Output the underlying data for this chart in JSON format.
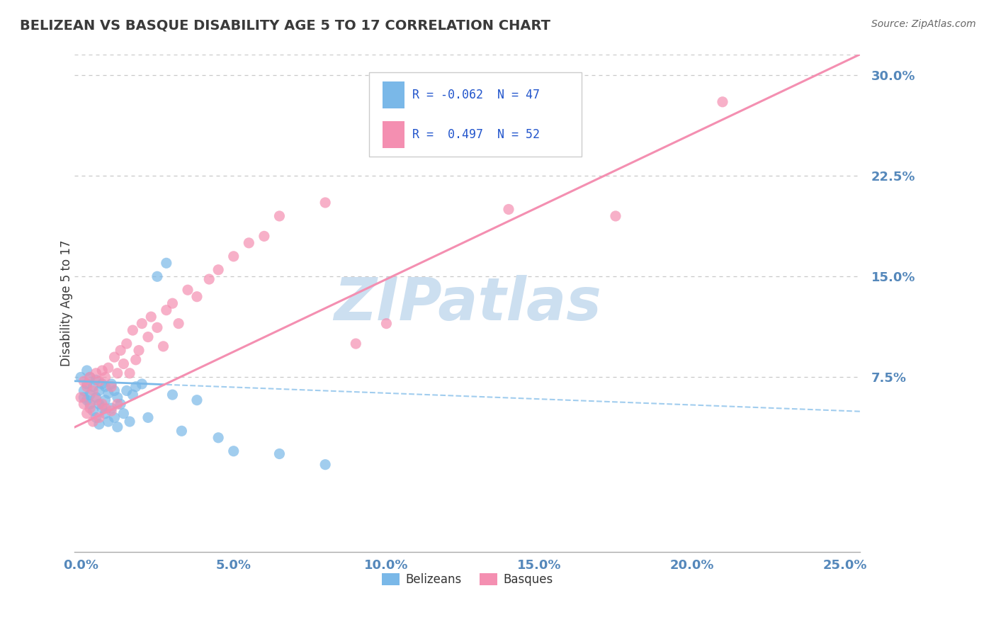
{
  "title": "BELIZEAN VS BASQUE DISABILITY AGE 5 TO 17 CORRELATION CHART",
  "source": "Source: ZipAtlas.com",
  "ylabel_label": "Disability Age 5 to 17",
  "xlim": [
    -0.002,
    0.255
  ],
  "ylim": [
    -0.055,
    0.315
  ],
  "yticks": [
    0.075,
    0.15,
    0.225,
    0.3
  ],
  "ytick_labels": [
    "7.5%",
    "15.0%",
    "22.5%",
    "30.0%"
  ],
  "xticks": [
    0.0,
    0.05,
    0.1,
    0.15,
    0.2,
    0.25
  ],
  "xtick_labels": [
    "0.0%",
    "5.0%",
    "10.0%",
    "15.0%",
    "20.0%",
    "25.0%"
  ],
  "belizean_color": "#7ab8e8",
  "basque_color": "#f48fb1",
  "belizean_R": -0.062,
  "belizean_N": 47,
  "basque_R": 0.497,
  "basque_N": 52,
  "watermark": "ZIPatlas",
  "watermark_color": "#ccdff0",
  "background_color": "#ffffff",
  "grid_color": "#c8c8c8",
  "title_color": "#3a3a3a",
  "axis_label_color": "#3a3a3a",
  "tick_color": "#5588bb",
  "source_color": "#666666",
  "legend_R_color": "#2255cc",
  "bel_trend_intercept": 0.072,
  "bel_trend_slope": -0.088,
  "bas_trend_intercept": 0.04,
  "bas_trend_slope": 1.08,
  "belizean_scatter_x": [
    0.0,
    0.001,
    0.001,
    0.002,
    0.002,
    0.002,
    0.003,
    0.003,
    0.003,
    0.004,
    0.004,
    0.005,
    0.005,
    0.005,
    0.006,
    0.006,
    0.006,
    0.007,
    0.007,
    0.008,
    0.008,
    0.008,
    0.009,
    0.009,
    0.01,
    0.01,
    0.011,
    0.011,
    0.012,
    0.012,
    0.013,
    0.014,
    0.015,
    0.016,
    0.017,
    0.018,
    0.02,
    0.022,
    0.025,
    0.028,
    0.03,
    0.033,
    0.038,
    0.045,
    0.05,
    0.065,
    0.08
  ],
  "belizean_scatter_y": [
    0.075,
    0.065,
    0.06,
    0.08,
    0.07,
    0.058,
    0.075,
    0.062,
    0.055,
    0.068,
    0.05,
    0.073,
    0.06,
    0.045,
    0.065,
    0.055,
    0.04,
    0.07,
    0.052,
    0.068,
    0.058,
    0.048,
    0.063,
    0.042,
    0.07,
    0.052,
    0.065,
    0.045,
    0.06,
    0.038,
    0.055,
    0.048,
    0.065,
    0.042,
    0.062,
    0.068,
    0.07,
    0.045,
    0.15,
    0.16,
    0.062,
    0.035,
    0.058,
    0.03,
    0.02,
    0.018,
    0.01
  ],
  "basque_scatter_x": [
    0.0,
    0.001,
    0.001,
    0.002,
    0.002,
    0.003,
    0.003,
    0.004,
    0.004,
    0.005,
    0.005,
    0.006,
    0.006,
    0.007,
    0.007,
    0.008,
    0.008,
    0.009,
    0.01,
    0.01,
    0.011,
    0.012,
    0.012,
    0.013,
    0.014,
    0.015,
    0.016,
    0.017,
    0.018,
    0.019,
    0.02,
    0.022,
    0.023,
    0.025,
    0.027,
    0.028,
    0.03,
    0.032,
    0.035,
    0.038,
    0.042,
    0.045,
    0.05,
    0.055,
    0.06,
    0.065,
    0.08,
    0.09,
    0.1,
    0.14,
    0.175,
    0.21
  ],
  "basque_scatter_y": [
    0.06,
    0.072,
    0.055,
    0.068,
    0.048,
    0.075,
    0.052,
    0.065,
    0.042,
    0.078,
    0.058,
    0.072,
    0.045,
    0.08,
    0.055,
    0.075,
    0.052,
    0.082,
    0.068,
    0.05,
    0.09,
    0.078,
    0.055,
    0.095,
    0.085,
    0.1,
    0.078,
    0.11,
    0.088,
    0.095,
    0.115,
    0.105,
    0.12,
    0.112,
    0.098,
    0.125,
    0.13,
    0.115,
    0.14,
    0.135,
    0.148,
    0.155,
    0.165,
    0.175,
    0.18,
    0.195,
    0.205,
    0.1,
    0.115,
    0.2,
    0.195,
    0.28
  ]
}
